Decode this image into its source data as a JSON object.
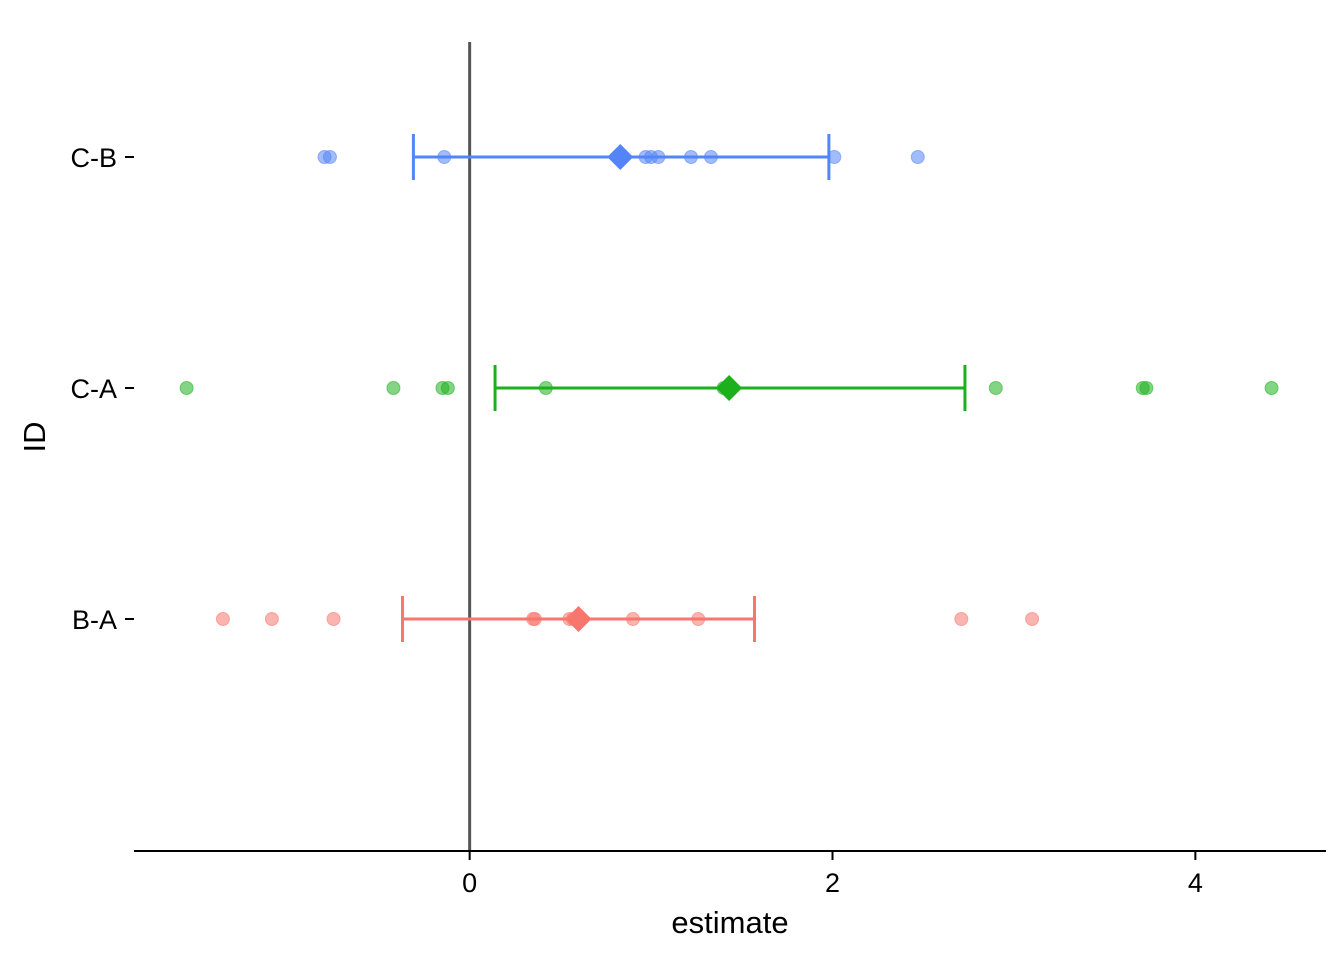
{
  "chart_data": {
    "type": "scatter",
    "xlabel": "estimate",
    "ylabel": "ID",
    "xlim": [
      -1.85,
      4.72
    ],
    "xticks": [
      0,
      2,
      4
    ],
    "categories": [
      "B-A",
      "C-A",
      "C-B"
    ],
    "reference_line_x": 0,
    "grid": false,
    "legend": "none",
    "series": [
      {
        "id": "B-A",
        "color": "#F8766D",
        "mean": 0.6,
        "ci": [
          -0.37,
          1.57
        ],
        "points": [
          -1.36,
          -1.09,
          -0.75,
          0.35,
          0.36,
          0.55,
          0.57,
          0.9,
          1.26,
          2.71,
          3.1
        ]
      },
      {
        "id": "C-A",
        "color": "#1DB01D",
        "mean": 1.43,
        "ci": [
          0.14,
          2.73
        ],
        "points": [
          -1.56,
          -0.42,
          -0.15,
          -0.12,
          0.42,
          1.4,
          1.42,
          2.9,
          3.71,
          3.73,
          4.42
        ]
      },
      {
        "id": "C-B",
        "color": "#5385F8",
        "mean": 0.83,
        "ci": [
          -0.31,
          1.98
        ],
        "points": [
          -0.8,
          -0.77,
          -0.14,
          0.97,
          1.0,
          1.04,
          1.22,
          1.33,
          2.01,
          2.47
        ]
      }
    ]
  }
}
